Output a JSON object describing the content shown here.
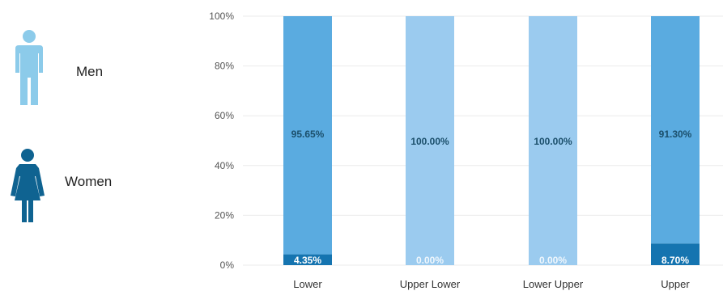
{
  "legend": {
    "men": {
      "label": "Men",
      "icon": "man-icon",
      "color": "#8ccbea"
    },
    "women": {
      "label": "Women",
      "icon": "woman-icon",
      "color": "#0f6391"
    }
  },
  "chart_data": {
    "type": "bar",
    "stacked": true,
    "title": "",
    "xlabel": "",
    "ylabel": "",
    "ylim": [
      0,
      100
    ],
    "y_ticks": [
      "0%",
      "20%",
      "40%",
      "60%",
      "80%",
      "100%"
    ],
    "categories": [
      "Lower",
      "Upper Lower",
      "Lower Upper",
      "Upper"
    ],
    "series": [
      {
        "name": "Women",
        "color": "#1574b0",
        "values": [
          4.35,
          0.0,
          0.0,
          8.7
        ],
        "labels": [
          "4.35%",
          "0.00%",
          "0.00%",
          "8.70%"
        ]
      },
      {
        "name": "Men",
        "colors": [
          "#5aabe0",
          "#9bcbef",
          "#9bcbef",
          "#5aabe0"
        ],
        "values": [
          95.65,
          100.0,
          100.0,
          91.3
        ],
        "labels": [
          "95.65%",
          "100.00%",
          "100.00%",
          "91.30%"
        ]
      }
    ],
    "grid": true,
    "legend_position": "left"
  }
}
